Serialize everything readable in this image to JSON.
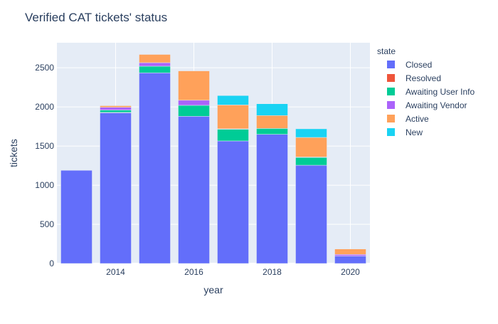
{
  "chart_data": {
    "type": "bar",
    "barmode": "stack",
    "title": "Verified CAT tickets' status",
    "xlabel": "year",
    "ylabel": "tickets",
    "x": [
      2013,
      2014,
      2015,
      2016,
      2017,
      2018,
      2019,
      2020
    ],
    "x_ticks": [
      2014,
      2016,
      2018,
      2020
    ],
    "ylim": [
      0,
      2820
    ],
    "y_ticks": [
      0,
      500,
      1000,
      1500,
      2000,
      2500
    ],
    "grid": true,
    "legend_title": "state",
    "legend_position": "right",
    "series": [
      {
        "name": "Closed",
        "color": "#636efa",
        "values": [
          1190,
          1925,
          2435,
          1880,
          1565,
          1650,
          1255,
          95
        ]
      },
      {
        "name": "Resolved",
        "color": "#EF553B",
        "values": [
          0,
          5,
          0,
          0,
          0,
          0,
          0,
          0
        ]
      },
      {
        "name": "Awaiting User Info",
        "color": "#00cc96",
        "values": [
          0,
          30,
          85,
          140,
          150,
          75,
          100,
          0
        ]
      },
      {
        "name": "Awaiting Vendor",
        "color": "#ab63fa",
        "values": [
          0,
          35,
          45,
          65,
          5,
          0,
          5,
          20
        ]
      },
      {
        "name": "Active",
        "color": "#FFA15A",
        "values": [
          0,
          20,
          105,
          375,
          305,
          165,
          250,
          70
        ]
      },
      {
        "name": "New",
        "color": "#19d3f3",
        "values": [
          0,
          0,
          0,
          0,
          120,
          150,
          110,
          0
        ]
      }
    ]
  }
}
